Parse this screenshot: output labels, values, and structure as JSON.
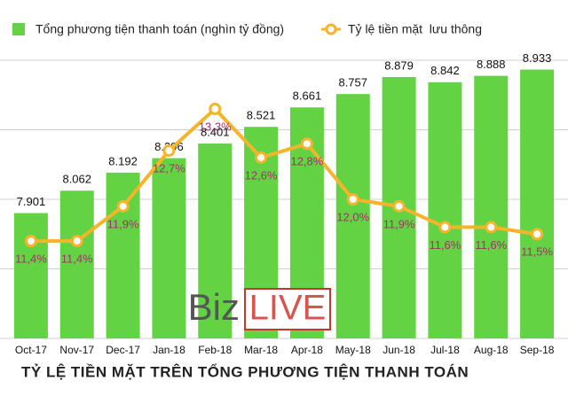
{
  "chart_data": {
    "type": "bar-line",
    "title": "TỶ LỆ TIỀN MẶT TRÊN TỔNG PHƯƠNG TIỆN THANH TOÁN",
    "watermark": [
      "Biz",
      "LIVE"
    ],
    "categories": [
      "Oct-17",
      "Nov-17",
      "Dec-17",
      "Jan-18",
      "Feb-18",
      "Mar-18",
      "Apr-18",
      "May-18",
      "Jun-18",
      "Jul-18",
      "Aug-18",
      "Sep-18"
    ],
    "series": [
      {
        "name": "Tổng phương tiện thanh toán (nghìn tỷ đồng)",
        "type": "bar",
        "color": "#63d344",
        "values": [
          7901,
          8062,
          8192,
          8296,
          8401,
          8521,
          8661,
          8757,
          8879,
          8842,
          8888,
          8933
        ],
        "value_labels": [
          "7.901",
          "8.062",
          "8.192",
          "8.296",
          "8.401",
          "8.521",
          "8.661",
          "8.757",
          "8.879",
          "8.842",
          "8.888",
          "8.933"
        ]
      },
      {
        "name": "Tỷ lệ tiền mặt  lưu thông",
        "type": "line",
        "axis": "y2",
        "color": "#f6b42a",
        "values": [
          11.4,
          11.4,
          11.9,
          12.7,
          13.3,
          12.6,
          12.8,
          12.0,
          11.9,
          11.6,
          11.6,
          11.5
        ],
        "value_labels": [
          "11,4%",
          "11,4%",
          "11,9%",
          "12,7%",
          "13,3%",
          "12,6%",
          "12,8%",
          "12,0%",
          "11,9%",
          "11,6%",
          "11,6%",
          "11,5%"
        ]
      }
    ],
    "ylim": [
      7000,
      9000
    ],
    "yticks": [
      7000,
      7500,
      8000,
      8500,
      9000
    ],
    "y2lim": [
      10,
      14
    ],
    "grid": true
  }
}
